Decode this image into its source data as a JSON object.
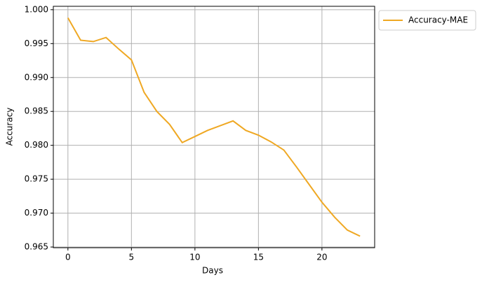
{
  "chart_data": {
    "type": "line",
    "x_label": "Days",
    "y_label": "Accuracy",
    "x": [
      0,
      1,
      2,
      3,
      4,
      5,
      6,
      7,
      8,
      9,
      10,
      11,
      12,
      13,
      14,
      15,
      16,
      17,
      18,
      19,
      20,
      21,
      22,
      23
    ],
    "series": [
      {
        "name": "Accuracy-MAE",
        "color": "#efa823",
        "values": [
          0.9988,
          0.9955,
          0.9953,
          0.9959,
          0.9942,
          0.9926,
          0.9878,
          0.985,
          0.9831,
          0.9804,
          0.9813,
          0.9822,
          0.9829,
          0.9836,
          0.9822,
          0.9815,
          0.9805,
          0.9793,
          0.9768,
          0.9742,
          0.9716,
          0.9694,
          0.9675,
          0.9666
        ]
      }
    ],
    "xlim": [
      -1.15,
      24.15
    ],
    "xticks": [
      0,
      5,
      10,
      15,
      20
    ],
    "ylim": [
      0.9649,
      1.0005
    ],
    "yticks": [
      {
        "value": 0.965,
        "label": "0.965"
      },
      {
        "value": 0.97,
        "label": "0.970"
      },
      {
        "value": 0.975,
        "label": "0.975"
      },
      {
        "value": 0.98,
        "label": "0.980"
      },
      {
        "value": 0.985,
        "label": "0.985"
      },
      {
        "value": 0.99,
        "label": "0.990"
      },
      {
        "value": 0.995,
        "label": "0.995"
      },
      {
        "value": 1.0,
        "label": "1.000"
      }
    ],
    "grid": true,
    "legend": "outside-right"
  }
}
